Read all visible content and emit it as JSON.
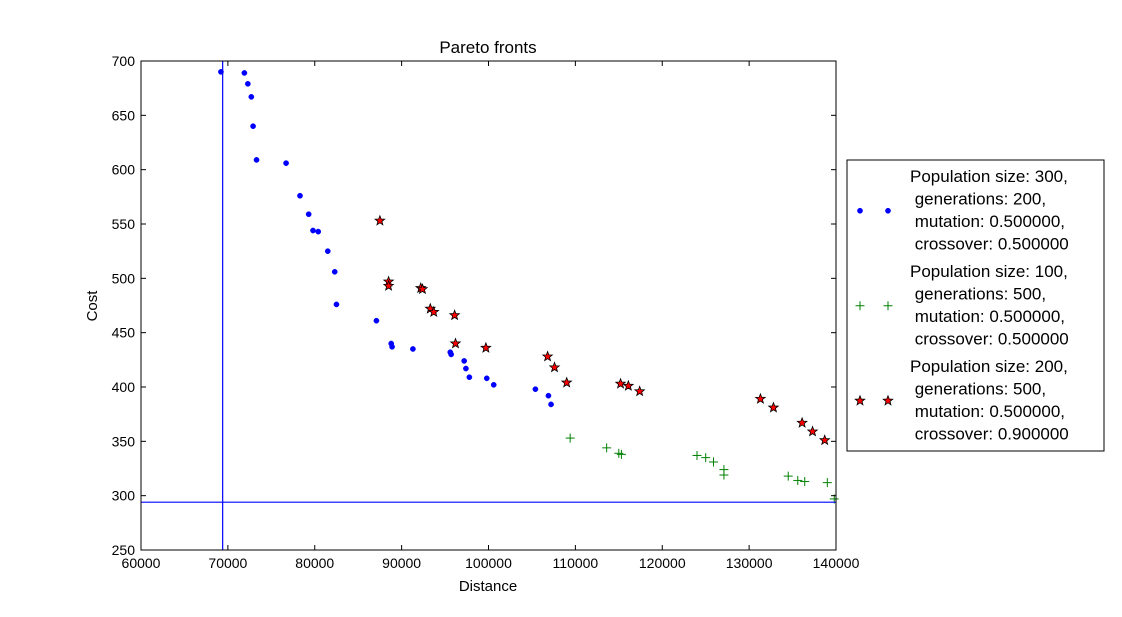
{
  "chart_data": {
    "type": "scatter",
    "title": "Pareto fronts",
    "xlabel": "Distance",
    "ylabel": "Cost",
    "xlim": [
      60000,
      140000
    ],
    "ylim": [
      250,
      700
    ],
    "xticks": [
      60000,
      70000,
      80000,
      90000,
      100000,
      110000,
      120000,
      130000,
      140000
    ],
    "yticks": [
      250,
      300,
      350,
      400,
      450,
      500,
      550,
      600,
      650,
      700
    ],
    "xtick_labels": [
      "60000",
      "70000",
      "80000",
      "90000",
      "100000",
      "110000",
      "120000",
      "130000",
      "140000"
    ],
    "ytick_labels": [
      "250",
      "300",
      "350",
      "400",
      "450",
      "500",
      "550",
      "600",
      "650",
      "700"
    ],
    "grid": false,
    "legend_position": "right, outside plot",
    "reference_lines": {
      "vertical_x": 69400,
      "horizontal_y": 294,
      "color": "#0000ff"
    },
    "series": [
      {
        "name": "Population size: 300,\n generations: 200,\n mutation: 0.500000,\n crossover: 0.500000",
        "marker": "dot",
        "color": "#0000ff",
        "points": [
          [
            69200,
            690
          ],
          [
            71900,
            689
          ],
          [
            72300,
            679
          ],
          [
            72700,
            667
          ],
          [
            72900,
            640
          ],
          [
            73300,
            609
          ],
          [
            76700,
            606
          ],
          [
            78300,
            576
          ],
          [
            79300,
            559
          ],
          [
            79800,
            544
          ],
          [
            80400,
            543
          ],
          [
            81500,
            525
          ],
          [
            82300,
            506
          ],
          [
            82500,
            476
          ],
          [
            87100,
            461
          ],
          [
            88800,
            440
          ],
          [
            88900,
            437
          ],
          [
            91300,
            435
          ],
          [
            95600,
            432
          ],
          [
            95700,
            430
          ],
          [
            97200,
            424
          ],
          [
            97400,
            417
          ],
          [
            97800,
            409
          ],
          [
            99800,
            408
          ],
          [
            100600,
            402
          ],
          [
            105400,
            398
          ],
          [
            106900,
            392
          ],
          [
            107200,
            384
          ]
        ]
      },
      {
        "name": "Population size: 100,\n generations: 500,\n mutation: 0.500000,\n crossover: 0.500000",
        "marker": "plus",
        "color": "#008000",
        "points": [
          [
            109400,
            353
          ],
          [
            113600,
            344
          ],
          [
            115000,
            339
          ],
          [
            115300,
            338
          ],
          [
            124000,
            337
          ],
          [
            125000,
            335
          ],
          [
            125900,
            331
          ],
          [
            127100,
            324
          ],
          [
            127100,
            319
          ],
          [
            134500,
            318
          ],
          [
            135600,
            314
          ],
          [
            136400,
            313
          ],
          [
            139000,
            312
          ],
          [
            139800,
            297
          ]
        ]
      },
      {
        "name": "Population size: 200,\n generations: 500,\n mutation: 0.500000,\n crossover: 0.900000",
        "marker": "star",
        "color": "#ff0000",
        "points": [
          [
            87500,
            553
          ],
          [
            88500,
            497
          ],
          [
            88500,
            493
          ],
          [
            92200,
            491
          ],
          [
            92400,
            490
          ],
          [
            93300,
            472
          ],
          [
            93700,
            469
          ],
          [
            96100,
            466
          ],
          [
            96200,
            440
          ],
          [
            99700,
            436
          ],
          [
            106800,
            428
          ],
          [
            107600,
            418
          ],
          [
            109000,
            404
          ],
          [
            115200,
            403
          ],
          [
            116100,
            401
          ],
          [
            117400,
            396
          ],
          [
            131300,
            389
          ],
          [
            132800,
            381
          ],
          [
            136100,
            367
          ],
          [
            137300,
            359
          ],
          [
            138700,
            351
          ]
        ]
      }
    ]
  }
}
